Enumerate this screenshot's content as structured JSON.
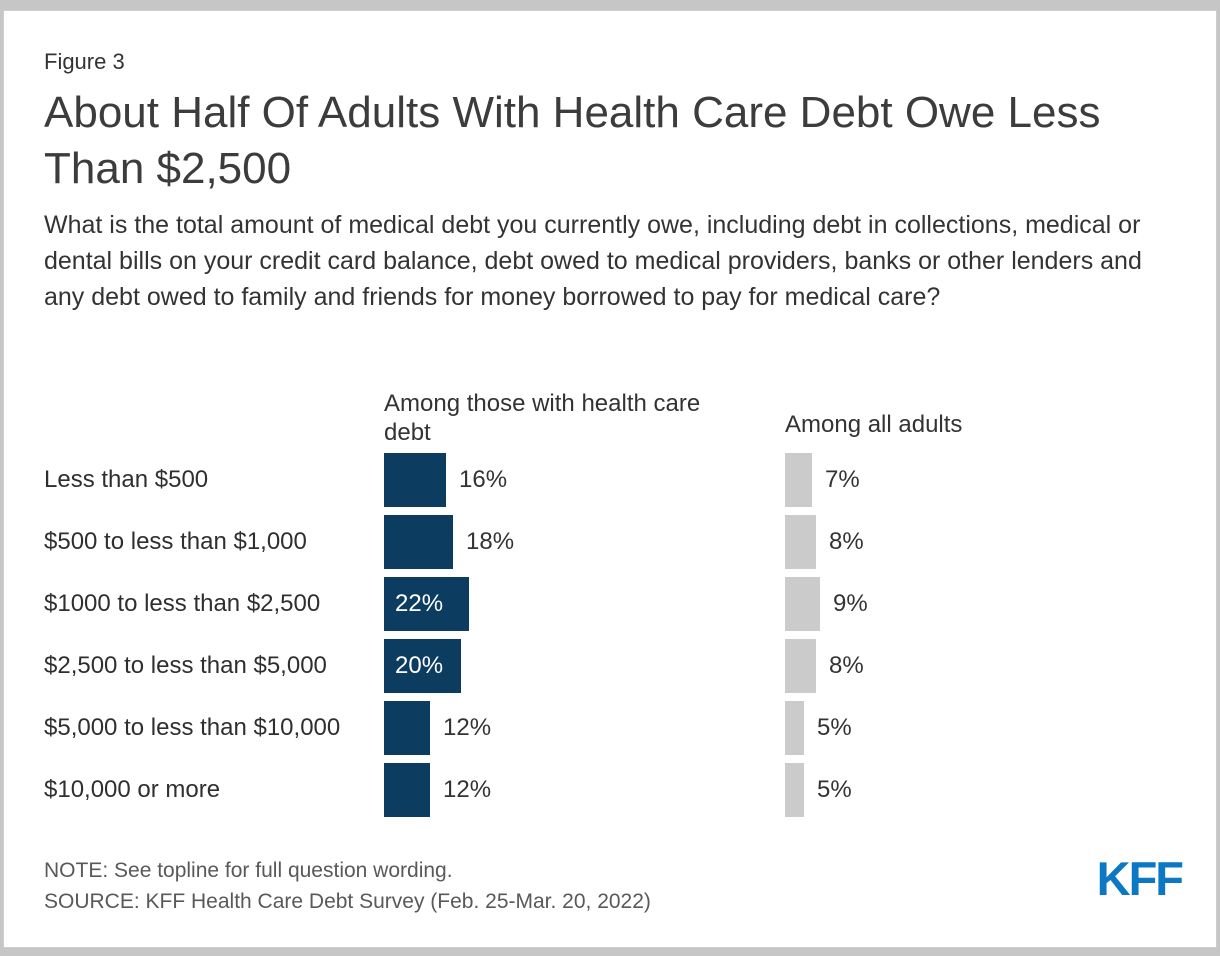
{
  "figure_label": "Figure 3",
  "title": "About Half Of Adults With Health Care Debt Owe Less Than $2,500",
  "question": "What is the total amount of medical debt you currently owe, including debt in collections, medical or dental bills on your credit card balance, debt owed to medical providers, banks or other lenders and any debt owed to family and friends for money borrowed to pay for medical care?",
  "note": "NOTE: See topline for full question wording.",
  "source": "SOURCE: KFF Health Care Debt Survey (Feb. 25-Mar. 20, 2022)",
  "logo_text": "KFF",
  "colors": {
    "page_background": "#c6c6c6",
    "card_border": "#cdcdcd",
    "debt_bar_navy": "#0c3c5f",
    "all_adults_bar_gray": "#cbcbcb",
    "logo_blue": "#0c78c3"
  },
  "chart_data": {
    "type": "bar",
    "orientation": "horizontal",
    "value_format": "percent",
    "categories": [
      "Less than $500",
      "$500 to less than $1,000",
      "$1000 to less than $2,500",
      "$2,500 to less than $5,000",
      "$5,000 to less than $10,000",
      "$10,000 or more"
    ],
    "series": [
      {
        "name": "Among those with health care debt",
        "values": [
          16,
          18,
          22,
          20,
          12,
          12
        ],
        "labels": [
          "16%",
          "18%",
          "22%",
          "20%",
          "12%",
          "12%"
        ],
        "color": "#0c3c5f"
      },
      {
        "name": "Among all adults",
        "values": [
          7,
          8,
          9,
          8,
          5,
          5
        ],
        "labels": [
          "7%",
          "8%",
          "9%",
          "8%",
          "5%",
          "5%"
        ],
        "color": "#cbcbcb"
      }
    ],
    "legend_position": "column-headers",
    "grid": false,
    "xlim": [
      0,
      25
    ]
  }
}
